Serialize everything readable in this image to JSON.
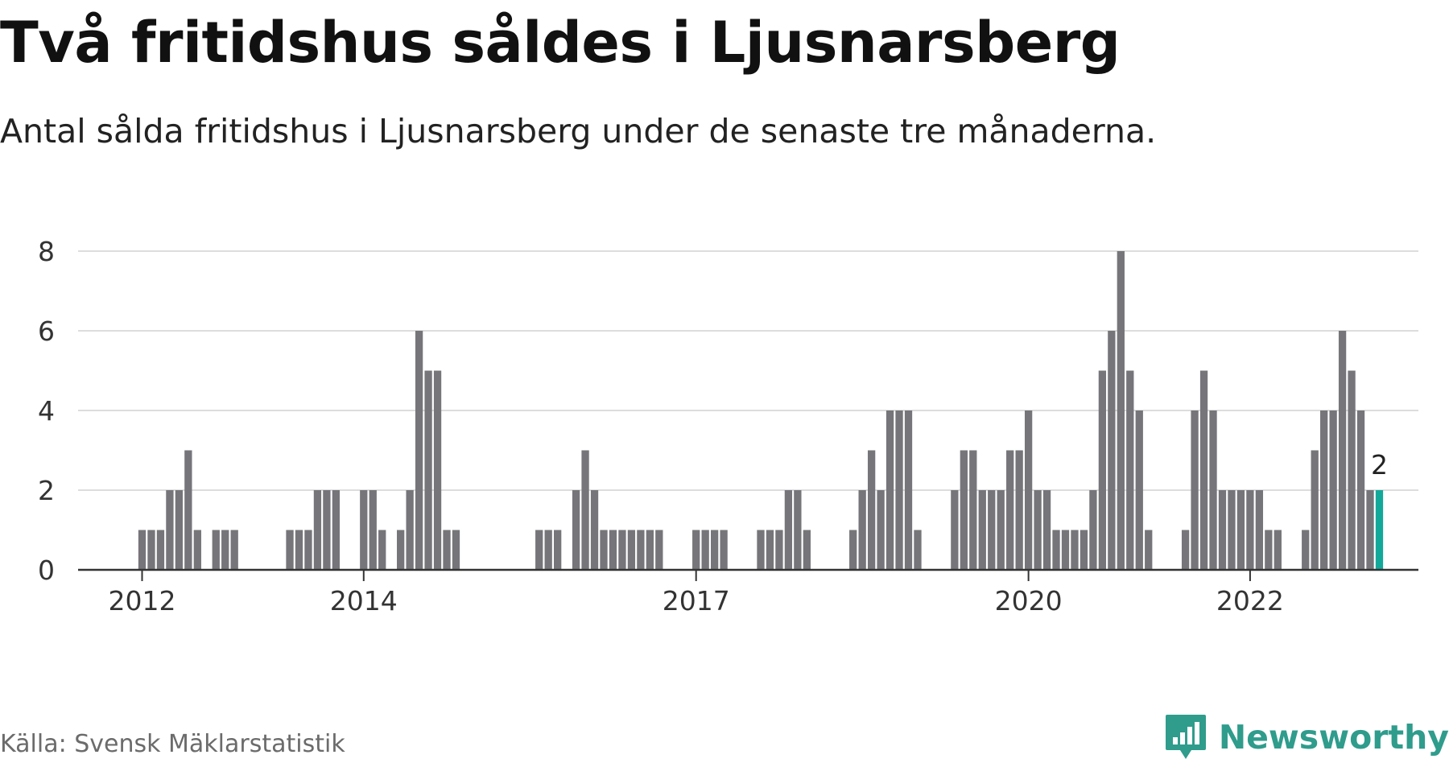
{
  "title": "Två fritidshus såldes i Ljusnarsberg",
  "subtitle": "Antal sålda fritidshus i Ljusnarsberg under de senaste tre månaderna.",
  "source": "Källa: Svensk Mäklarstatistik",
  "logo": {
    "text": "Newsworthy",
    "icon": "newsworthy-logo-icon",
    "color": "#2f9c8c"
  },
  "colors": {
    "bar": "#76757a",
    "highlight": "#13a89a",
    "grid": "#dddddd",
    "axis": "#333333"
  },
  "chart_data": {
    "type": "bar",
    "ylim": [
      0,
      8
    ],
    "yticks": [
      "0",
      "2",
      "4",
      "6",
      "8"
    ],
    "grid": true,
    "xticks": [
      {
        "label": "2012",
        "index": 0
      },
      {
        "label": "2014",
        "index": 24
      },
      {
        "label": "2017",
        "index": 60
      },
      {
        "label": "2020",
        "index": 96
      },
      {
        "label": "2022",
        "index": 120
      }
    ],
    "start_index": -7,
    "values": [
      0,
      0,
      0,
      0,
      0,
      0,
      0,
      1,
      1,
      1,
      2,
      2,
      3,
      1,
      0,
      1,
      1,
      1,
      0,
      0,
      0,
      0,
      0,
      1,
      1,
      1,
      2,
      2,
      2,
      0,
      0,
      2,
      2,
      1,
      0,
      1,
      2,
      6,
      5,
      5,
      1,
      1,
      0,
      0,
      0,
      0,
      0,
      0,
      0,
      0,
      1,
      1,
      1,
      0,
      2,
      3,
      2,
      1,
      1,
      1,
      1,
      1,
      1,
      1,
      0,
      0,
      0,
      1,
      1,
      1,
      1,
      0,
      0,
      0,
      1,
      1,
      1,
      2,
      2,
      1,
      0,
      0,
      0,
      0,
      1,
      2,
      3,
      2,
      4,
      4,
      4,
      1,
      0,
      0,
      0,
      2,
      3,
      3,
      2,
      2,
      2,
      3,
      3,
      4,
      2,
      2,
      1,
      1,
      1,
      1,
      2,
      5,
      6,
      8,
      5,
      4,
      1,
      0,
      0,
      0,
      1,
      4,
      5,
      4,
      2,
      2,
      2,
      2,
      2,
      1,
      1,
      0,
      0,
      1,
      3,
      4,
      4,
      6,
      5,
      4,
      2,
      2
    ],
    "highlight_last": true,
    "last_label": "2"
  }
}
